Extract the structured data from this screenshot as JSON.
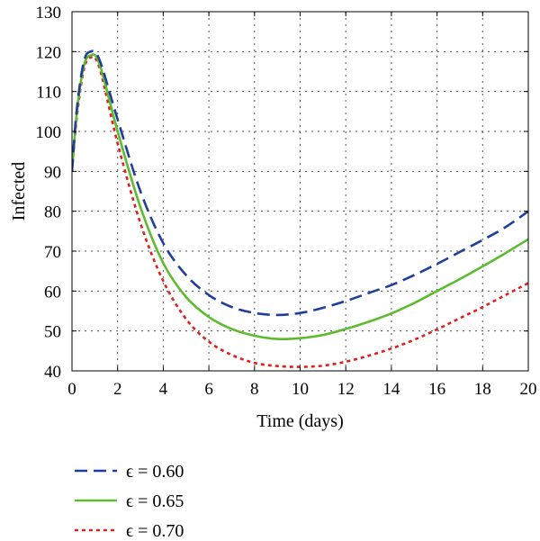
{
  "chart_data": {
    "type": "line",
    "xlabel": "Time (days)",
    "ylabel": "Infected",
    "xlim": [
      0,
      20
    ],
    "ylim": [
      40,
      130
    ],
    "x_ticks": [
      0,
      2,
      4,
      6,
      8,
      10,
      12,
      14,
      16,
      18,
      20
    ],
    "y_ticks": [
      40,
      50,
      60,
      70,
      80,
      90,
      100,
      110,
      120,
      130
    ],
    "x_tick_labels": [
      "0",
      "2",
      "4",
      "6",
      "8",
      "10",
      "12",
      "14",
      "16",
      "18",
      "20"
    ],
    "y_tick_labels": [
      "40",
      "50",
      "60",
      "70",
      "80",
      "90",
      "100",
      "110",
      "120",
      "130"
    ],
    "grid": true,
    "legend_position": "bottom-left, below plot",
    "series": [
      {
        "name": "ϵ = 0.60",
        "color": "#1f3f99",
        "dash": "dashed",
        "points": [
          [
            0,
            90
          ],
          [
            0.2,
            105
          ],
          [
            0.5,
            117
          ],
          [
            0.8,
            120
          ],
          [
            1.2,
            118
          ],
          [
            2,
            103
          ],
          [
            3,
            85
          ],
          [
            4,
            72
          ],
          [
            5,
            64
          ],
          [
            6,
            59
          ],
          [
            7,
            56
          ],
          [
            8,
            54.5
          ],
          [
            9,
            54
          ],
          [
            10,
            54.5
          ],
          [
            11,
            55.8
          ],
          [
            12,
            57.5
          ],
          [
            13,
            59.5
          ],
          [
            14,
            61.5
          ],
          [
            15,
            64
          ],
          [
            16,
            66.8
          ],
          [
            17,
            69.8
          ],
          [
            18,
            72.8
          ],
          [
            19,
            76
          ],
          [
            20,
            80
          ]
        ]
      },
      {
        "name": "ϵ = 0.65",
        "color": "#5cbb2e",
        "dash": "solid",
        "points": [
          [
            0,
            90
          ],
          [
            0.2,
            104
          ],
          [
            0.5,
            116
          ],
          [
            0.8,
            119
          ],
          [
            1.2,
            117
          ],
          [
            2,
            100
          ],
          [
            3,
            81
          ],
          [
            4,
            67
          ],
          [
            5,
            58.5
          ],
          [
            6,
            53.5
          ],
          [
            7,
            50.5
          ],
          [
            8,
            48.8
          ],
          [
            9,
            48
          ],
          [
            10,
            48.2
          ],
          [
            11,
            49
          ],
          [
            12,
            50.5
          ],
          [
            13,
            52.3
          ],
          [
            14,
            54.4
          ],
          [
            15,
            57
          ],
          [
            16,
            60
          ],
          [
            17,
            63
          ],
          [
            18,
            66.2
          ],
          [
            19,
            69.5
          ],
          [
            20,
            73
          ]
        ]
      },
      {
        "name": "ϵ = 0.70",
        "color": "#e02020",
        "dash": "dotted",
        "points": [
          [
            0,
            90
          ],
          [
            0.2,
            103
          ],
          [
            0.5,
            115
          ],
          [
            0.8,
            118.5
          ],
          [
            1.2,
            116
          ],
          [
            2,
            97
          ],
          [
            3,
            77
          ],
          [
            4,
            62.5
          ],
          [
            5,
            53
          ],
          [
            6,
            47.3
          ],
          [
            7,
            44
          ],
          [
            8,
            42
          ],
          [
            9,
            41.2
          ],
          [
            10,
            41
          ],
          [
            11,
            41.3
          ],
          [
            12,
            42.3
          ],
          [
            13,
            43.8
          ],
          [
            14,
            45.6
          ],
          [
            15,
            47.8
          ],
          [
            16,
            50.4
          ],
          [
            17,
            53.2
          ],
          [
            18,
            56
          ],
          [
            19,
            59
          ],
          [
            20,
            62
          ]
        ]
      }
    ]
  }
}
